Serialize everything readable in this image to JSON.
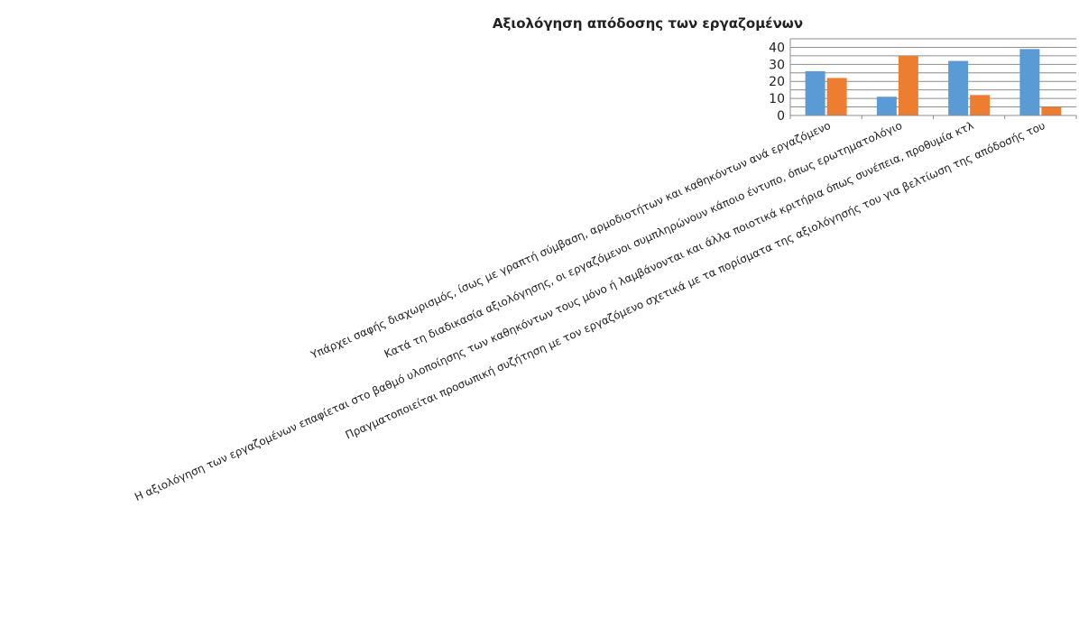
{
  "chart_data": {
    "type": "bar",
    "title": "Αξιολόγηση απόδοσης των εργαζομένων",
    "categories": [
      "Υπάρχει σαφής διαχωρισμός, ίσως με γραπτή σύμβαση, αρμοδιοτήτων και καθηκόντων ανά εργαζόμενο",
      "Κατά τη διαδικασία αξιολόγησης, οι εργαζόμενοι συμπληρώνουν κάποιο έντυπο, όπως ερωτηματολόγιο",
      "Η αξιολόγηση των εργαζομένων επαφίεται στο βαθμό υλοποίησης των καθηκόντων τους μόνο ή λαμβάνονται και άλλα ποιοτικά κριτήρια όπως συνέπεια, προθυμία κτλ",
      "Πραγματοποιείται προσωπική συζήτηση με τον εργαζόμενο σχετικά με τα πορίσματα της αξιολόγησής του για βελτίωση της απόδοσής του"
    ],
    "series": [
      {
        "values": [
          26,
          11,
          32,
          39
        ],
        "color": "#5B9BD5"
      },
      {
        "values": [
          22,
          35,
          12,
          5
        ],
        "color": "#ED7D31"
      }
    ],
    "ylim": [
      0,
      45
    ],
    "yticks": [
      0,
      10,
      20,
      30,
      40
    ],
    "grid": true,
    "legend": "none"
  }
}
